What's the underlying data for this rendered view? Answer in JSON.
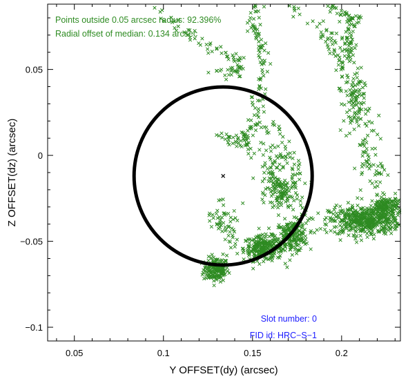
{
  "chart_data": {
    "type": "scatter",
    "xlabel": "Y OFFSET(dy) (arcsec)",
    "ylabel": "Z OFFSET(dz) (arcsec)",
    "xlim": [
      0.035,
      0.233
    ],
    "ylim": [
      -0.108,
      0.088
    ],
    "x_ticks": [
      0.05,
      0.1,
      0.15,
      0.2
    ],
    "x_tick_labels": [
      "0.05",
      "0.1",
      "0.15",
      "0.2"
    ],
    "y_ticks": [
      0.05,
      0,
      -0.05,
      -0.1
    ],
    "y_tick_labels": [
      "0.05",
      "0",
      "−0.05",
      "−0.1"
    ],
    "grid": false,
    "annotations": {
      "outside": "Points outside 0.05 arcsec radius: 92.396%",
      "median_offset": "Radial offset of median: 0.134 arcsec",
      "slot": "Slot number: 0",
      "fid": "FID id: HRC−S−1"
    },
    "median_point": [
      0.1335,
      -0.012
    ],
    "circle": {
      "center": [
        0.1335,
        -0.012
      ],
      "radius": 0.05
    },
    "clusters": [
      {
        "x": 0.1295,
        "y": -0.0665,
        "sx": 0.0035,
        "sy": 0.0035,
        "n": 170
      },
      {
        "x": 0.156,
        "y": -0.054,
        "sx": 0.0055,
        "sy": 0.0035,
        "n": 260
      },
      {
        "x": 0.172,
        "y": -0.047,
        "sx": 0.0045,
        "sy": 0.0045,
        "n": 200
      },
      {
        "x": 0.213,
        "y": -0.038,
        "sx": 0.01,
        "sy": 0.004,
        "n": 480
      },
      {
        "x": 0.225,
        "y": -0.03,
        "sx": 0.0045,
        "sy": 0.003,
        "n": 160
      },
      {
        "x": 0.166,
        "y": -0.022,
        "sx": 0.004,
        "sy": 0.006,
        "n": 110
      },
      {
        "x": 0.161,
        "y": -0.005,
        "sx": 0.004,
        "sy": 0.007,
        "n": 60
      },
      {
        "x": 0.134,
        "y": -0.035,
        "sx": 0.005,
        "sy": 0.006,
        "n": 35
      },
      {
        "x": 0.207,
        "y": 0.03,
        "sx": 0.003,
        "sy": 0.01,
        "n": 80
      },
      {
        "x": 0.204,
        "y": 0.065,
        "sx": 0.002,
        "sy": 0.008,
        "n": 55
      },
      {
        "x": 0.217,
        "y": -0.005,
        "sx": 0.004,
        "sy": 0.015,
        "n": 55
      }
    ],
    "paths": [
      {
        "pts": [
          [
            0.095,
            0.088
          ],
          [
            0.107,
            0.078
          ],
          [
            0.12,
            0.066
          ],
          [
            0.135,
            0.06
          ],
          [
            0.14,
            0.058
          ],
          [
            0.142,
            0.05
          ],
          [
            0.138,
            0.048
          ],
          [
            0.125,
            0.05
          ]
        ],
        "n": 80,
        "jitter": 0.0018
      },
      {
        "pts": [
          [
            0.152,
            0.09
          ],
          [
            0.15,
            0.076
          ],
          [
            0.156,
            0.064
          ],
          [
            0.157,
            0.048
          ],
          [
            0.153,
            0.032
          ],
          [
            0.152,
            0.016
          ],
          [
            0.147,
            0.012
          ],
          [
            0.144,
            0.008
          ]
        ],
        "n": 120,
        "jitter": 0.002
      },
      {
        "pts": [
          [
            0.17,
            0.09
          ],
          [
            0.183,
            0.076
          ],
          [
            0.193,
            0.069
          ],
          [
            0.196,
            0.058
          ],
          [
            0.2,
            0.05
          ],
          [
            0.203,
            0.04
          ],
          [
            0.209,
            0.03
          ],
          [
            0.212,
            0.01
          ],
          [
            0.214,
            -0.005
          ]
        ],
        "n": 90,
        "jitter": 0.002
      },
      {
        "pts": [
          [
            0.193,
            0.09
          ],
          [
            0.197,
            0.084
          ],
          [
            0.206,
            0.08
          ],
          [
            0.21,
            0.076
          ]
        ],
        "n": 40,
        "jitter": 0.0015
      },
      {
        "pts": [
          [
            0.156,
            0.02
          ],
          [
            0.162,
            0.015
          ],
          [
            0.168,
            0.005
          ],
          [
            0.172,
            -0.005
          ],
          [
            0.175,
            -0.015
          ],
          [
            0.176,
            -0.025
          ],
          [
            0.178,
            -0.035
          ],
          [
            0.176,
            -0.04
          ]
        ],
        "n": 60,
        "jitter": 0.0022
      },
      {
        "pts": [
          [
            0.131,
            0.012
          ],
          [
            0.138,
            0.01
          ],
          [
            0.146,
            0.005
          ],
          [
            0.15,
            -0.002
          ]
        ],
        "n": 25,
        "jitter": 0.0015
      },
      {
        "pts": [
          [
            0.125,
            -0.042
          ],
          [
            0.13,
            -0.04
          ],
          [
            0.136,
            -0.043
          ],
          [
            0.139,
            -0.046
          ],
          [
            0.137,
            -0.055
          ],
          [
            0.133,
            -0.06
          ],
          [
            0.13,
            -0.064
          ]
        ],
        "n": 30,
        "jitter": 0.0018
      }
    ]
  }
}
